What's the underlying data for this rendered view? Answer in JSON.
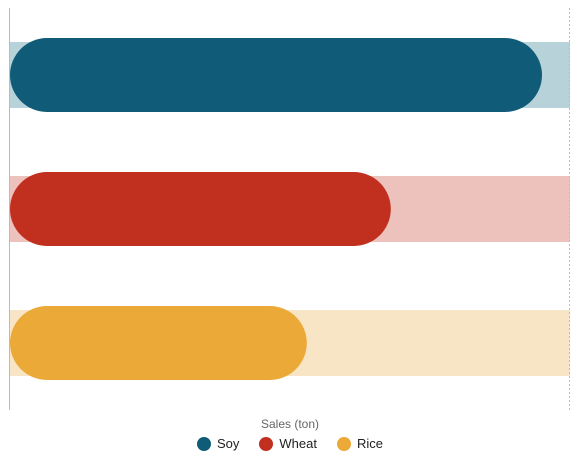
{
  "chart_data": {
    "type": "bar",
    "orientation": "horizontal",
    "xlabel": "Sales (ton)",
    "categories": [
      "Soy",
      "Wheat",
      "Rice"
    ],
    "values": [
      95,
      68,
      53
    ],
    "track_value": 100,
    "xlim": [
      0,
      100
    ],
    "grid": false,
    "legend_position": "bottom",
    "series": [
      {
        "name": "Soy",
        "value": 95,
        "color": "#0f5b78",
        "track_color": "#b8d2da"
      },
      {
        "name": "Wheat",
        "value": 68,
        "color": "#c12f1f",
        "track_color": "#edc1bc"
      },
      {
        "name": "Rice",
        "value": 53,
        "color": "#eba937",
        "track_color": "#f8e5c5"
      }
    ]
  }
}
